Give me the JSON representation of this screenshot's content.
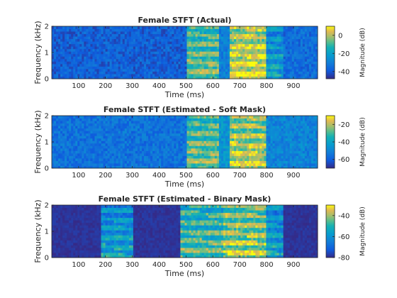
{
  "chart_data": [
    {
      "type": "heatmap",
      "title": "Female STFT (Actual)",
      "xlabel": "Time (ms)",
      "ylabel": "Frequency (kHz)",
      "xlim": [
        0,
        990
      ],
      "ylim": [
        0,
        2
      ],
      "xticks": [
        100,
        200,
        300,
        400,
        500,
        600,
        700,
        800,
        900
      ],
      "yticks": [
        0,
        1,
        2
      ],
      "colorbar": {
        "label": "Magnitude (dB)",
        "range": [
          -48,
          10
        ],
        "ticks": [
          0,
          -20,
          -40
        ]
      },
      "colormap": "parula",
      "regions": [
        {
          "time_ms": [
            0,
            500
          ],
          "level_db": -38,
          "note": "low energy, noisy background"
        },
        {
          "time_ms": [
            500,
            620
          ],
          "level_db": -5,
          "note": "voiced energy with harmonics"
        },
        {
          "time_ms": [
            620,
            660
          ],
          "level_db": -30
        },
        {
          "time_ms": [
            660,
            800
          ],
          "level_db": 5,
          "note": "strong harmonic bands"
        },
        {
          "time_ms": [
            800,
            860
          ],
          "level_db": -20
        },
        {
          "time_ms": [
            860,
            990
          ],
          "level_db": -35
        }
      ]
    },
    {
      "type": "heatmap",
      "title": "Female STFT (Estimated - Soft Mask)",
      "xlabel": "Time (ms)",
      "ylabel": "Frequency (kHz)",
      "xlim": [
        0,
        990
      ],
      "ylim": [
        0,
        2
      ],
      "xticks": [
        100,
        200,
        300,
        400,
        500,
        600,
        700,
        800,
        900
      ],
      "yticks": [
        0,
        1,
        2
      ],
      "colorbar": {
        "label": "Magnitude (dB)",
        "range": [
          -70,
          -10
        ],
        "ticks": [
          -20,
          -40,
          -60
        ]
      },
      "colormap": "parula",
      "regions": [
        {
          "time_ms": [
            0,
            500
          ],
          "level_db": -55
        },
        {
          "time_ms": [
            500,
            620
          ],
          "level_db": -25
        },
        {
          "time_ms": [
            620,
            660
          ],
          "level_db": -45
        },
        {
          "time_ms": [
            660,
            800
          ],
          "level_db": -18
        },
        {
          "time_ms": [
            800,
            990
          ],
          "level_db": -50
        }
      ]
    },
    {
      "type": "heatmap",
      "title": "Female STFT (Estimated - Binary Mask)",
      "xlabel": "Time (ms)",
      "ylabel": "Frequency (kHz)",
      "xlim": [
        0,
        990
      ],
      "ylim": [
        0,
        2
      ],
      "xticks": [
        100,
        200,
        300,
        400,
        500,
        600,
        700,
        800,
        900
      ],
      "yticks": [
        0,
        1,
        2
      ],
      "colorbar": {
        "label": "Magnitude (dB)",
        "range": [
          -80,
          -30
        ],
        "ticks": [
          -40,
          -60,
          -80
        ]
      },
      "colormap": "parula",
      "regions": [
        {
          "time_ms": [
            0,
            180
          ],
          "level_db": -80,
          "note": "masked out"
        },
        {
          "time_ms": [
            180,
            300
          ],
          "level_db": -55
        },
        {
          "time_ms": [
            300,
            480
          ],
          "level_db": -78
        },
        {
          "time_ms": [
            480,
            640
          ],
          "level_db": -45
        },
        {
          "time_ms": [
            640,
            800
          ],
          "level_db": -38
        },
        {
          "time_ms": [
            800,
            860
          ],
          "level_db": -55
        },
        {
          "time_ms": [
            860,
            990
          ],
          "level_db": -80
        }
      ]
    }
  ]
}
